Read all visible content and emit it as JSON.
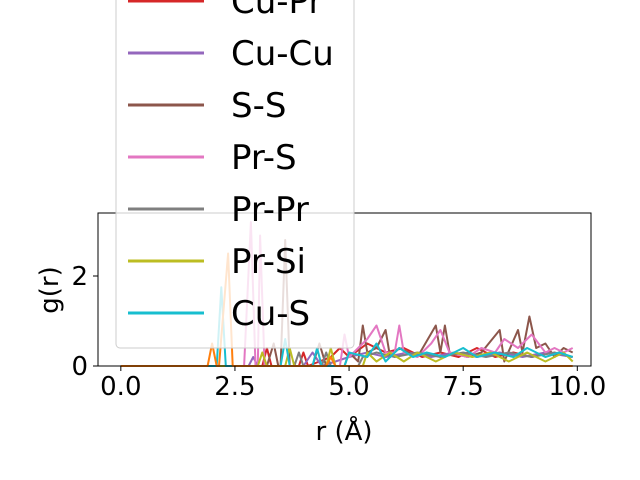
{
  "chart_data": {
    "type": "line",
    "xlabel": "r (Å)",
    "ylabel": "g(r)",
    "xlim": [
      -0.5,
      10.3
    ],
    "ylim": [
      0,
      3.4
    ],
    "xticks": [
      0.0,
      2.5,
      5.0,
      7.5,
      10.0
    ],
    "xtick_labels": [
      "0.0",
      "2.5",
      "5.0",
      "7.5",
      "10.0"
    ],
    "yticks": [
      0,
      2
    ],
    "ytick_labels": [
      "0",
      "2"
    ],
    "grid": false,
    "legend_placement": "upper-left, extending above the axes",
    "series": [
      {
        "name": "Cu-Pr",
        "color": "#d62728",
        "points": [
          [
            0.0,
            0
          ],
          [
            3.1,
            0
          ],
          [
            3.2,
            0.4
          ],
          [
            3.3,
            0
          ],
          [
            3.9,
            0
          ],
          [
            4.0,
            0.3
          ],
          [
            4.1,
            0
          ],
          [
            4.6,
            0.2
          ],
          [
            4.8,
            0.4
          ],
          [
            5.0,
            0.2
          ],
          [
            5.4,
            0.5
          ],
          [
            5.8,
            0.3
          ],
          [
            6.2,
            0.4
          ],
          [
            6.6,
            0.2
          ],
          [
            7.0,
            0.3
          ],
          [
            7.4,
            0.2
          ],
          [
            7.8,
            0.4
          ],
          [
            8.2,
            0.2
          ],
          [
            8.6,
            0.3
          ],
          [
            9.0,
            0.2
          ],
          [
            9.4,
            0.3
          ],
          [
            9.9,
            0.2
          ]
        ]
      },
      {
        "name": "Cu-Cu",
        "color": "#9467bd",
        "points": [
          [
            0.0,
            0
          ],
          [
            2.8,
            0
          ],
          [
            2.9,
            0.2
          ],
          [
            3.0,
            0
          ],
          [
            4.0,
            0
          ],
          [
            4.2,
            0.3
          ],
          [
            4.4,
            0
          ],
          [
            5.0,
            0.2
          ],
          [
            5.4,
            0.3
          ],
          [
            5.8,
            0.2
          ],
          [
            6.3,
            0.3
          ],
          [
            6.8,
            0.2
          ],
          [
            7.3,
            0.3
          ],
          [
            7.8,
            0.2
          ],
          [
            8.3,
            0.3
          ],
          [
            8.8,
            0.2
          ],
          [
            9.3,
            0.3
          ],
          [
            9.9,
            0.2
          ]
        ]
      },
      {
        "name": "S-S",
        "color": "#8c564b",
        "points": [
          [
            0.0,
            0
          ],
          [
            3.2,
            0
          ],
          [
            3.35,
            0.5
          ],
          [
            3.45,
            0
          ],
          [
            3.5,
            0
          ],
          [
            3.6,
            2.8
          ],
          [
            3.7,
            0
          ],
          [
            4.2,
            0
          ],
          [
            4.35,
            0.5
          ],
          [
            4.5,
            0
          ],
          [
            4.9,
            0
          ],
          [
            5.0,
            0.3
          ],
          [
            5.2,
            0.1
          ],
          [
            5.3,
            0.9
          ],
          [
            5.4,
            0.3
          ],
          [
            5.6,
            0.4
          ],
          [
            5.8,
            0.8
          ],
          [
            5.9,
            0.2
          ],
          [
            6.1,
            0.4
          ],
          [
            6.5,
            0.2
          ],
          [
            6.9,
            0.9
          ],
          [
            7.0,
            0.3
          ],
          [
            7.1,
            0.9
          ],
          [
            7.2,
            0.3
          ],
          [
            7.6,
            0.2
          ],
          [
            7.9,
            0.3
          ],
          [
            8.3,
            0.8
          ],
          [
            8.4,
            0.1
          ],
          [
            8.7,
            0.8
          ],
          [
            8.8,
            0.3
          ],
          [
            8.95,
            1.1
          ],
          [
            9.1,
            0.4
          ],
          [
            9.3,
            0.5
          ],
          [
            9.5,
            0.2
          ],
          [
            9.7,
            0.4
          ],
          [
            9.9,
            0.3
          ]
        ]
      },
      {
        "name": "Pr-S",
        "color": "#e377c2",
        "points": [
          [
            0.0,
            0
          ],
          [
            2.7,
            0
          ],
          [
            2.85,
            3.2
          ],
          [
            2.95,
            0
          ],
          [
            3.0,
            0
          ],
          [
            3.05,
            2.9
          ],
          [
            3.15,
            0
          ],
          [
            4.8,
            0
          ],
          [
            4.9,
            0.7
          ],
          [
            5.0,
            0.2
          ],
          [
            5.4,
            0.6
          ],
          [
            5.6,
            0.9
          ],
          [
            5.8,
            0.3
          ],
          [
            6.0,
            0.3
          ],
          [
            6.1,
            0.9
          ],
          [
            6.2,
            0.3
          ],
          [
            6.5,
            0.2
          ],
          [
            6.8,
            0.5
          ],
          [
            7.0,
            0.8
          ],
          [
            7.2,
            0.3
          ],
          [
            7.6,
            0.2
          ],
          [
            7.9,
            0.4
          ],
          [
            8.2,
            0.3
          ],
          [
            8.4,
            0.6
          ],
          [
            8.7,
            0.4
          ],
          [
            9.0,
            0.7
          ],
          [
            9.3,
            0.3
          ],
          [
            9.5,
            0.4
          ],
          [
            9.7,
            0.3
          ],
          [
            9.9,
            0.4
          ]
        ]
      },
      {
        "name": "Pr-Pr",
        "color": "#7f7f7f",
        "points": [
          [
            0.0,
            0
          ],
          [
            3.8,
            0
          ],
          [
            3.9,
            0.3
          ],
          [
            4.0,
            0
          ],
          [
            4.4,
            0
          ],
          [
            4.5,
            0.3
          ],
          [
            4.6,
            0
          ],
          [
            5.2,
            0
          ],
          [
            5.3,
            0.2
          ],
          [
            5.6,
            0.3
          ],
          [
            6.0,
            0.2
          ],
          [
            6.5,
            0.3
          ],
          [
            7.0,
            0.2
          ],
          [
            7.5,
            0.3
          ],
          [
            8.0,
            0.2
          ],
          [
            8.5,
            0.3
          ],
          [
            9.0,
            0.2
          ],
          [
            9.5,
            0.3
          ],
          [
            9.9,
            0.2
          ]
        ]
      },
      {
        "name": "Pr-Si",
        "color": "#bcbd22",
        "points": [
          [
            0.0,
            0
          ],
          [
            3.0,
            0
          ],
          [
            3.1,
            0.3
          ],
          [
            3.2,
            0
          ],
          [
            3.6,
            0
          ],
          [
            3.7,
            0.4
          ],
          [
            3.8,
            0
          ],
          [
            4.5,
            0
          ],
          [
            4.6,
            0.4
          ],
          [
            4.7,
            0
          ],
          [
            5.3,
            0
          ],
          [
            5.4,
            0.3
          ],
          [
            5.6,
            0.1
          ],
          [
            5.9,
            0.3
          ],
          [
            6.2,
            0.1
          ],
          [
            6.5,
            0.3
          ],
          [
            6.9,
            0.1
          ],
          [
            7.3,
            0.3
          ],
          [
            7.7,
            0.2
          ],
          [
            8.1,
            0.3
          ],
          [
            8.5,
            0.1
          ],
          [
            8.9,
            0.3
          ],
          [
            9.3,
            0.1
          ],
          [
            9.7,
            0.3
          ],
          [
            9.9,
            0.1
          ]
        ]
      },
      {
        "name": "Cu-S",
        "color": "#17becf",
        "points": [
          [
            0.0,
            0
          ],
          [
            2.1,
            0
          ],
          [
            2.2,
            1.75
          ],
          [
            2.3,
            0
          ],
          [
            3.5,
            0
          ],
          [
            3.6,
            0.6
          ],
          [
            3.7,
            0
          ],
          [
            4.2,
            0
          ],
          [
            4.3,
            0.4
          ],
          [
            4.4,
            0
          ],
          [
            4.9,
            0
          ],
          [
            5.0,
            0.3
          ],
          [
            5.4,
            0.2
          ],
          [
            5.6,
            0.5
          ],
          [
            5.8,
            0.1
          ],
          [
            6.1,
            0.4
          ],
          [
            6.4,
            0.2
          ],
          [
            6.7,
            0.3
          ],
          [
            7.1,
            0.2
          ],
          [
            7.5,
            0.4
          ],
          [
            7.8,
            0.2
          ],
          [
            8.2,
            0.3
          ],
          [
            8.6,
            0.2
          ],
          [
            8.9,
            0.4
          ],
          [
            9.3,
            0.2
          ],
          [
            9.6,
            0.3
          ],
          [
            9.9,
            0.2
          ]
        ]
      },
      {
        "name": "",
        "color": "#ff7f0e",
        "points": [
          [
            0.0,
            0
          ],
          [
            1.9,
            0
          ],
          [
            2.0,
            0.5
          ],
          [
            2.1,
            0
          ],
          [
            2.15,
            0
          ],
          [
            2.35,
            2.5
          ],
          [
            2.45,
            0
          ],
          [
            4.5,
            0
          ],
          [
            4.6,
            0.2
          ],
          [
            4.7,
            0
          ],
          [
            9.9,
            0
          ]
        ]
      }
    ],
    "legend_entries": [
      "Cu-Pr",
      "Cu-Cu",
      "S-S",
      "Pr-S",
      "Pr-Pr",
      "Pr-Si",
      "Cu-S"
    ]
  }
}
